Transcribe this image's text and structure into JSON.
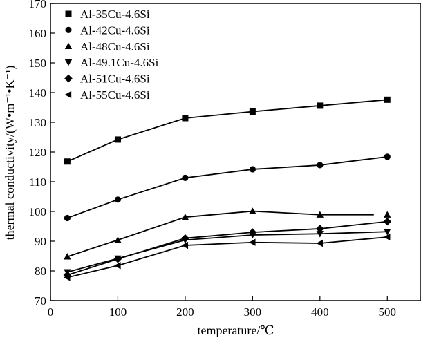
{
  "chart_data": {
    "type": "line",
    "title": "",
    "xlabel": "temperature/℃",
    "ylabel": "thermal conductivity/(W•m⁻¹•K⁻¹)",
    "xlim": [
      0,
      550
    ],
    "ylim": [
      70,
      170
    ],
    "xticks": [
      0,
      100,
      200,
      300,
      400,
      500
    ],
    "yticks": [
      70,
      80,
      90,
      100,
      110,
      120,
      130,
      140,
      150,
      160,
      170
    ],
    "legend_position": "top-left",
    "series": [
      {
        "name": "Al-35Cu-4.6Si",
        "marker": "square",
        "x": [
          25,
          100,
          200,
          300,
          400,
          500
        ],
        "y": [
          116.8,
          124.2,
          131.4,
          133.6,
          135.6,
          137.6
        ]
      },
      {
        "name": "Al-42Cu-4.6Si",
        "marker": "circle",
        "x": [
          25,
          100,
          200,
          300,
          400,
          500
        ],
        "y": [
          97.8,
          104.0,
          111.3,
          114.2,
          115.6,
          118.4
        ]
      },
      {
        "name": "Al-48Cu-4.6Si",
        "marker": "triangle-up",
        "x": [
          25,
          100,
          200,
          300,
          400,
          500
        ],
        "y": [
          84.8,
          90.4,
          98.1,
          100.1,
          98.9,
          98.9
        ],
        "line_x": [
          25,
          100,
          200,
          300,
          400,
          480
        ],
        "line_y": [
          84.8,
          90.4,
          98.1,
          100.1,
          98.9,
          98.9
        ]
      },
      {
        "name": "Al-49.1Cu-4.6Si",
        "marker": "triangle-down",
        "x": [
          25,
          100,
          200,
          300,
          400,
          500
        ],
        "y": [
          79.6,
          84.2,
          90.4,
          92.1,
          92.5,
          93.2
        ]
      },
      {
        "name": "Al-51Cu-4.6Si",
        "marker": "diamond",
        "x": [
          25,
          100,
          200,
          300,
          400,
          500
        ],
        "y": [
          78.6,
          84.0,
          91.0,
          93.0,
          94.2,
          96.6
        ]
      },
      {
        "name": "Al-55Cu-4.6Si",
        "marker": "triangle-left",
        "x": [
          25,
          100,
          200,
          300,
          400,
          500
        ],
        "y": [
          77.8,
          81.8,
          88.6,
          89.6,
          89.3,
          91.4
        ]
      }
    ]
  }
}
